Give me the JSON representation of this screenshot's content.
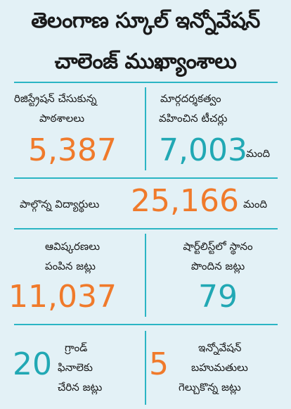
{
  "title": {
    "line1": "తెలంగాణ స్కూల్ ఇన్నోవేషన్",
    "line2": "చాలెంజ్ ముఖ్యాంశాలు"
  },
  "stats": {
    "schools": {
      "label1": "రిజిస్ట్రేషన్ చేసుకున్న",
      "label2": "పాఠశాలలు",
      "value": "5,387"
    },
    "teachers": {
      "label1": "మార్గదర్శకత్వం",
      "label2": "వహించిన టీచర్లు",
      "value": "7,003",
      "unit": "మంది"
    },
    "students": {
      "label": "పాల్గొన్న విద్యార్థులు",
      "value": "25,166",
      "unit": "మంది"
    },
    "innovations": {
      "label1": "ఆవిష్కరణలు",
      "label2": "పంపిన జట్లు",
      "value": "11,037"
    },
    "shortlisted": {
      "label1": "షార్ట్‌లిస్ట్‌లో స్థానం",
      "label2": "పొందిన జట్లు",
      "value": "79"
    },
    "finale": {
      "value": "20",
      "label1": "గ్రాండ్",
      "label2": "ఫినాలెకు",
      "label3": "చేరిన జట్లు"
    },
    "prizes": {
      "value": "5",
      "label1": "ఇన్నోవేషన్",
      "label2": "బహుమతులు",
      "label3": "గెల్చుకొన్న జట్లు"
    }
  },
  "colors": {
    "orange": "#f07a2b",
    "teal": "#21a8b4",
    "divider": "#2bb5c4",
    "background": "#e3f1f6"
  }
}
